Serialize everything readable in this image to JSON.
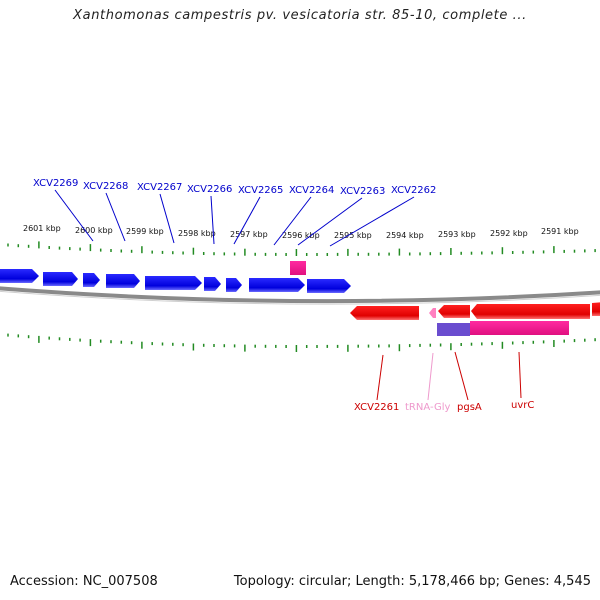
{
  "title": "Xanthomonas campestris pv. vesicatoria str. 85-10, complete ...",
  "accession": "Accession: NC_007508",
  "summary": "Topology: circular; Length: 5,178,466 bp; Genes: 4,545",
  "colors": {
    "forward_gene": "#0000ee",
    "reverse_gene": "#ee0000",
    "rrna_trna": "#ff1493",
    "trna_label": "#ee99cc",
    "ticks": "#228b22",
    "backbone": "#808080"
  },
  "scale_labels": [
    "2601 kbp",
    "2600 kbp",
    "2599 kbp",
    "2598 kbp",
    "2597 kbp",
    "2596 kbp",
    "2595 kbp",
    "2594 kbp",
    "2593 kbp",
    "2592 kbp",
    "2591 kbp"
  ],
  "top_gene_labels": [
    "XCV2269",
    "XCV2268",
    "XCV2267",
    "XCV2266",
    "XCV2265",
    "XCV2264",
    "XCV2263",
    "XCV2262"
  ],
  "bottom_gene_labels": [
    {
      "text": "XCV2261",
      "kind": "reverse_gene"
    },
    {
      "text": "tRNA-Gly",
      "kind": "trna"
    },
    {
      "text": "pgsA",
      "kind": "reverse_gene"
    },
    {
      "text": "uvrC",
      "kind": "reverse_gene"
    }
  ]
}
